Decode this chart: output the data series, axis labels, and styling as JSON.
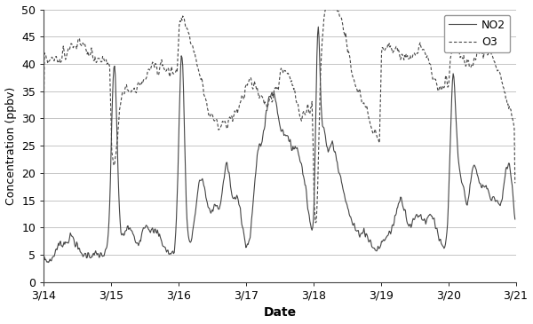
{
  "title": "",
  "xlabel": "Date",
  "ylabel": "Concentration (ppbv)",
  "xlim": [
    0,
    168
  ],
  "ylim": [
    0,
    50
  ],
  "yticks": [
    0,
    5,
    10,
    15,
    20,
    25,
    30,
    35,
    40,
    45,
    50
  ],
  "xtick_positions": [
    0,
    24,
    48,
    72,
    96,
    120,
    144,
    168
  ],
  "xtick_labels": [
    "3/14",
    "3/15",
    "3/16",
    "3/17",
    "3/18",
    "3/19",
    "3/20",
    "3/21"
  ],
  "no2_color": "#444444",
  "o3_color": "#444444",
  "legend_labels": [
    "NO2",
    "O3"
  ],
  "figsize": [
    6.0,
    3.65
  ],
  "dpi": 100,
  "no2_linewidth": 0.8,
  "o3_linewidth": 0.8
}
